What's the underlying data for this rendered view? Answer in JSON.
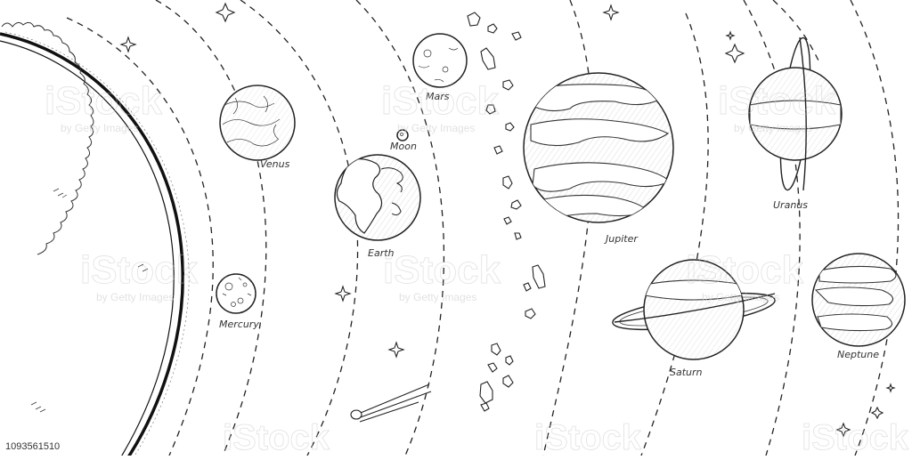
{
  "planets": {
    "mercury": "Mercury",
    "venus": "Venus",
    "earth": "Earth",
    "moon": "Moon",
    "mars": "Mars",
    "jupiter": "Jupiter",
    "saturn": "Saturn",
    "uranus": "Uranus",
    "neptune": "Neptune"
  },
  "watermark": {
    "brand": "iStock",
    "credit": "by Getty Images",
    "image_id": "1093561510"
  }
}
